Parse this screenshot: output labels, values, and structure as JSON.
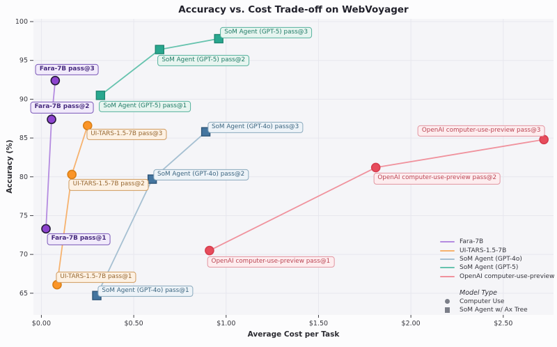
{
  "title": "Accuracy vs. Cost Trade-off on WebVoyager",
  "chart_data": {
    "type": "line",
    "title": "Accuracy vs. Cost Trade-off on WebVoyager",
    "xlabel": "Average Cost per Task",
    "ylabel": "Accuracy (%)",
    "xlim": [
      -0.043,
      2.772
    ],
    "ylim": [
      62.2,
      100.36
    ],
    "grid": true,
    "legend_position": "lower right",
    "x_ticks": [
      {
        "value": 0.0,
        "label": "$0.00"
      },
      {
        "value": 0.5,
        "label": "$0.50"
      },
      {
        "value": 1.0,
        "label": "$1.00"
      },
      {
        "value": 1.5,
        "label": "$1.50"
      },
      {
        "value": 2.0,
        "label": "$2.00"
      },
      {
        "value": 2.5,
        "label": "$2.50"
      }
    ],
    "y_ticks": [
      {
        "value": 65,
        "label": "65"
      },
      {
        "value": 70,
        "label": "70"
      },
      {
        "value": 75,
        "label": "75"
      },
      {
        "value": 80,
        "label": "80"
      },
      {
        "value": 85,
        "label": "85"
      },
      {
        "value": 90,
        "label": "90"
      },
      {
        "value": 95,
        "label": "95"
      },
      {
        "value": 100,
        "label": "100"
      }
    ],
    "colors": {
      "figure_bg": "#fcfcfd",
      "plot_bg": "#f5f5f8",
      "grid": "#e7e7ee",
      "tick": "#3f3f46",
      "tick_label": "#38383f",
      "legend_marker": "#7b7e88"
    },
    "series": [
      {
        "name": "Fara-7B",
        "model_type": "Computer Use",
        "marker": "circle",
        "line_color": "#b48be0",
        "marker_color": "#8d43cf",
        "marker_edge": "#241a38",
        "label_bg": "#f1eafb",
        "label_border": "#7a57b8",
        "label_text_color": "#44287c",
        "label_bold": true,
        "points": [
          {
            "cost": 0.025,
            "accuracy": 73.3,
            "label": "Fara-7B pass@1",
            "label_dx": 47,
            "label_dy": 15
          },
          {
            "cost": 0.055,
            "accuracy": 87.4,
            "label": "Fara-7B pass@2",
            "label_dx": 15,
            "label_dy": -17
          },
          {
            "cost": 0.075,
            "accuracy": 92.4,
            "label": "Fara-7B pass@3",
            "label_dx": 17,
            "label_dy": -16
          }
        ]
      },
      {
        "name": "UI-TARS-1.5-7B",
        "model_type": "Computer Use",
        "marker": "circle",
        "line_color": "#f6b26e",
        "marker_color": "#fb9528",
        "marker_edge": "#d97f16",
        "label_bg": "#fdf1e3",
        "label_border": "#cf9a5e",
        "label_text_color": "#96662e",
        "label_bold": false,
        "points": [
          {
            "cost": 0.085,
            "accuracy": 66.1,
            "label": "UI-TARS-1.5-7B pass@1",
            "label_dx": 56,
            "label_dy": -11
          },
          {
            "cost": 0.165,
            "accuracy": 80.3,
            "label": "UI-TARS-1.5-7B pass@2",
            "label_dx": 53,
            "label_dy": 15
          },
          {
            "cost": 0.25,
            "accuracy": 86.6,
            "label": "UI-TARS-1.5-7B pass@3",
            "label_dx": 56,
            "label_dy": 13
          }
        ]
      },
      {
        "name": "SoM Agent (GPT-4o)",
        "model_type": "SoM Agent w/ Ax Tree",
        "marker": "square",
        "line_color": "#a6c0d2",
        "marker_color": "#44759f",
        "marker_edge": "#2e5578",
        "label_bg": "#edf3f8",
        "label_border": "#8aa9bd",
        "label_text_color": "#3a647f",
        "label_bold": false,
        "points": [
          {
            "cost": 0.3,
            "accuracy": 64.7,
            "label": "SoM Agent (GPT-4o) pass@1",
            "label_dx": 70,
            "label_dy": -6
          },
          {
            "cost": 0.6,
            "accuracy": 79.7,
            "label": "SoM Agent (GPT-4o) pass@2",
            "label_dx": 70,
            "label_dy": -6
          },
          {
            "cost": 0.89,
            "accuracy": 85.8,
            "label": "SoM Agent (GPT-4o) pass@3",
            "label_dx": 71,
            "label_dy": -6
          }
        ]
      },
      {
        "name": "SoM Agent (GPT-5)",
        "model_type": "SoM Agent w/ Ax Tree",
        "marker": "square",
        "line_color": "#66c3ae",
        "marker_color": "#29a78f",
        "marker_edge": "#1d8671",
        "label_bg": "#e7f5f0",
        "label_border": "#57b29d",
        "label_text_color": "#1f7a65",
        "label_bold": false,
        "points": [
          {
            "cost": 0.32,
            "accuracy": 90.5,
            "label": "SoM Agent (GPT-5) pass@1",
            "label_dx": 64,
            "label_dy": 16
          },
          {
            "cost": 0.64,
            "accuracy": 96.4,
            "label": "SoM Agent (GPT-5) pass@2",
            "label_dx": 63,
            "label_dy": 16
          },
          {
            "cost": 0.96,
            "accuracy": 97.8,
            "label": "SoM Agent (GPT-5) pass@3",
            "label_dx": 68,
            "label_dy": -9
          }
        ]
      },
      {
        "name": "OpenAI computer-use-preview",
        "model_type": "Computer Use",
        "marker": "circle",
        "line_color": "#f0929d",
        "marker_color": "#e74c5c",
        "marker_edge": "#d63d4e",
        "label_bg": "#fdedef",
        "label_border": "#e295a0",
        "label_text_color": "#bb4553",
        "label_bold": false,
        "points": [
          {
            "cost": 0.91,
            "accuracy": 70.5,
            "label": "OpenAI computer-use-preview pass@1",
            "label_dx": 88,
            "label_dy": 16
          },
          {
            "cost": 1.81,
            "accuracy": 81.2,
            "label": "OpenAI computer-use-preview pass@2",
            "label_dx": 88,
            "label_dy": 16
          },
          {
            "cost": 2.72,
            "accuracy": 84.8,
            "label": "OpenAI computer-use-preview pass@3",
            "label_dx": -90,
            "label_dy": -12
          }
        ]
      }
    ],
    "legend": {
      "model_type_title": "Model Type",
      "model_type_entries": [
        {
          "marker": "circle",
          "label": "Computer Use"
        },
        {
          "marker": "square",
          "label": "SoM Agent w/ Ax Tree"
        }
      ]
    }
  }
}
